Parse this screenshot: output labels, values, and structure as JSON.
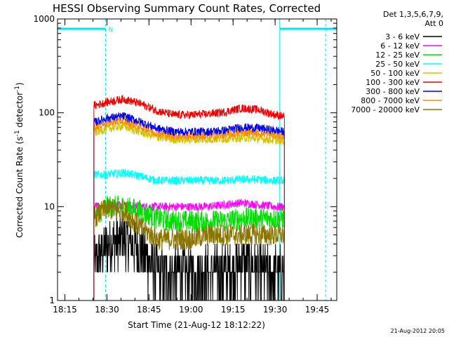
{
  "chart_data": {
    "type": "line",
    "title": "HESSI Observing Summary Count Rates, Corrected",
    "xlabel": "Start Time (21-Aug-12 18:12:22)",
    "ylabel_main": "Corrected Count Rate (s",
    "ylabel_sup1": "-1",
    "ylabel_mid": " detector",
    "ylabel_sup2": "-1",
    "ylabel_end": ")",
    "y_scale": "log",
    "ylim": [
      1,
      1000
    ],
    "xlim": [
      "18:12:22",
      "19:52:00"
    ],
    "x_ticks": [
      "18:15",
      "18:30",
      "18:45",
      "19:00",
      "19:15",
      "19:30",
      "19:45"
    ],
    "y_ticks": [
      "1",
      "10",
      "100",
      "1000"
    ],
    "legend_header": [
      "Det 1,3,5,6,7,9,",
      "Att 0"
    ],
    "legend_placement": "right",
    "footer": "21-Aug-2012 20:05",
    "night_flag_label": "N",
    "data_interval": {
      "start": "18:25:20",
      "end": "19:33:20"
    },
    "night_intervals": [
      {
        "start": "18:12:22",
        "end": "18:29:30",
        "marker": "18:29:30"
      },
      {
        "start": "19:31:40",
        "end": "19:52:00",
        "marker": "19:48:00"
      }
    ],
    "series": [
      {
        "name": "3 - 6 keV",
        "color": "#000000",
        "x": [
          "18:26",
          "18:30",
          "18:36",
          "18:42",
          "18:48",
          "18:54",
          "19:00",
          "19:06",
          "19:12",
          "19:18",
          "19:24",
          "19:30",
          "19:33"
        ],
        "values": [
          2.5,
          4.0,
          4.5,
          3.5,
          2.0,
          2.0,
          2.0,
          2.0,
          2.0,
          2.5,
          2.0,
          2.0,
          2.0
        ]
      },
      {
        "name": "6 - 12 keV",
        "color": "#ff00ff",
        "x": [
          "18:26",
          "18:30",
          "18:36",
          "18:42",
          "18:48",
          "18:54",
          "19:00",
          "19:06",
          "19:12",
          "19:18",
          "19:24",
          "19:30",
          "19:33"
        ],
        "values": [
          10,
          10.5,
          10.5,
          10,
          10,
          10,
          10,
          10,
          10.5,
          11,
          10.5,
          10,
          10
        ]
      },
      {
        "name": "12 - 25 keV",
        "color": "#00dd00",
        "x": [
          "18:26",
          "18:30",
          "18:36",
          "18:42",
          "18:48",
          "18:54",
          "19:00",
          "19:06",
          "19:12",
          "19:18",
          "19:24",
          "19:30",
          "19:33"
        ],
        "values": [
          8,
          10,
          10,
          9,
          7.5,
          7,
          7,
          7,
          7,
          7.5,
          7.5,
          7.5,
          7.5
        ]
      },
      {
        "name": "25 - 50 keV",
        "color": "#00ffff",
        "x": [
          "18:26",
          "18:30",
          "18:36",
          "18:42",
          "18:48",
          "18:54",
          "19:00",
          "19:06",
          "19:12",
          "19:18",
          "19:24",
          "19:30",
          "19:33"
        ],
        "values": [
          22,
          22,
          23,
          21,
          19,
          19,
          19,
          19,
          19,
          19.5,
          19.5,
          19,
          19
        ]
      },
      {
        "name": "50 - 100 keV",
        "color": "#d4c200",
        "x": [
          "18:26",
          "18:30",
          "18:36",
          "18:42",
          "18:48",
          "18:54",
          "19:00",
          "19:06",
          "19:12",
          "19:18",
          "19:24",
          "19:30",
          "19:33"
        ],
        "values": [
          62,
          68,
          72,
          62,
          55,
          52,
          52,
          52,
          53,
          54,
          53,
          51,
          50
        ]
      },
      {
        "name": "100 - 300 keV",
        "color": "#ee0000",
        "x": [
          "18:26",
          "18:30",
          "18:36",
          "18:42",
          "18:48",
          "18:54",
          "19:00",
          "19:06",
          "19:12",
          "19:18",
          "19:24",
          "19:30",
          "19:33"
        ],
        "values": [
          120,
          130,
          140,
          125,
          105,
          95,
          95,
          97,
          102,
          112,
          108,
          95,
          92
        ]
      },
      {
        "name": "300 - 800 keV",
        "color": "#0000ee",
        "x": [
          "18:26",
          "18:30",
          "18:36",
          "18:42",
          "18:48",
          "18:54",
          "19:00",
          "19:06",
          "19:12",
          "19:18",
          "19:24",
          "19:30",
          "19:33"
        ],
        "values": [
          80,
          88,
          92,
          80,
          68,
          63,
          63,
          63,
          65,
          70,
          69,
          65,
          63
        ]
      },
      {
        "name": "800 - 7000 keV",
        "color": "#ff8800",
        "x": [
          "18:26",
          "18:30",
          "18:36",
          "18:42",
          "18:48",
          "18:54",
          "19:00",
          "19:06",
          "19:12",
          "19:18",
          "19:24",
          "19:30",
          "19:33"
        ],
        "values": [
          72,
          78,
          82,
          71,
          61,
          57,
          57,
          57,
          58,
          62,
          61,
          58,
          57
        ]
      },
      {
        "name": "7000 - 20000 keV",
        "color": "#8b7500",
        "x": [
          "18:26",
          "18:30",
          "18:36",
          "18:42",
          "18:48",
          "18:54",
          "19:00",
          "19:06",
          "19:12",
          "19:18",
          "19:24",
          "19:30",
          "19:33"
        ],
        "values": [
          8,
          9.5,
          9,
          6,
          4.5,
          4.5,
          4.5,
          5,
          5,
          5,
          5,
          5,
          5
        ]
      }
    ]
  }
}
